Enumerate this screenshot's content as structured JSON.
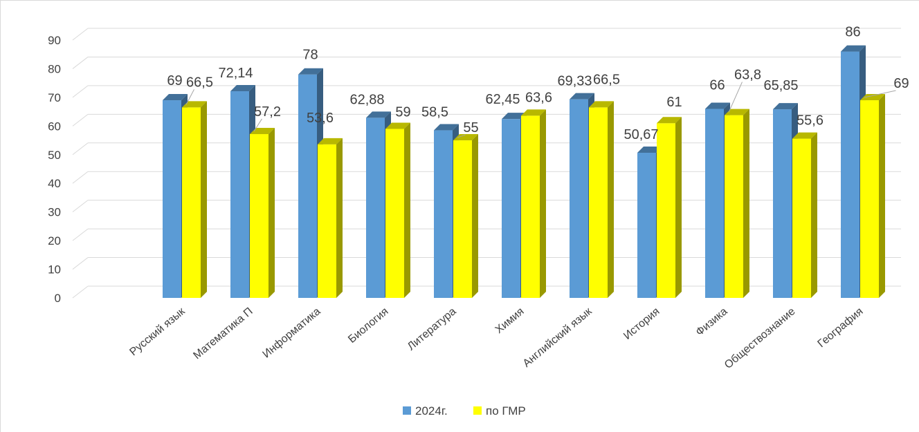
{
  "chart_data": {
    "type": "bar",
    "title": "",
    "xlabel": "",
    "ylabel": "",
    "ylim": [
      0,
      90
    ],
    "yticks": [
      0,
      10,
      20,
      30,
      40,
      50,
      60,
      70,
      80,
      90
    ],
    "grid": true,
    "legend_position": "bottom",
    "categories": [
      "Русский язык",
      "Математика П",
      "Информатика",
      "Биология",
      "Литература",
      "Химия",
      "Английский язык",
      "История",
      "Физика",
      "Обществознание",
      "География"
    ],
    "series": [
      {
        "name": "2024г.",
        "color": "#5b9bd5",
        "values": [
          69,
          72.14,
          78,
          62.88,
          58.5,
          62.45,
          69.33,
          50.67,
          66,
          65.85,
          86
        ],
        "labels": [
          "69",
          "72,14",
          "78",
          "62,88",
          "58,5",
          "62,45",
          "69,33",
          "50,67",
          "66",
          "65,85",
          "86"
        ]
      },
      {
        "name": "по ГМР",
        "color": "#ffff00",
        "values": [
          66.5,
          57.2,
          53.6,
          59,
          55,
          63.6,
          66.5,
          61,
          63.8,
          55.6,
          69
        ],
        "labels": [
          "66,5",
          "57,2",
          "53,6",
          "59",
          "55",
          "63,6",
          "66,5",
          "61",
          "63,8",
          "55,6",
          "69"
        ]
      }
    ]
  }
}
